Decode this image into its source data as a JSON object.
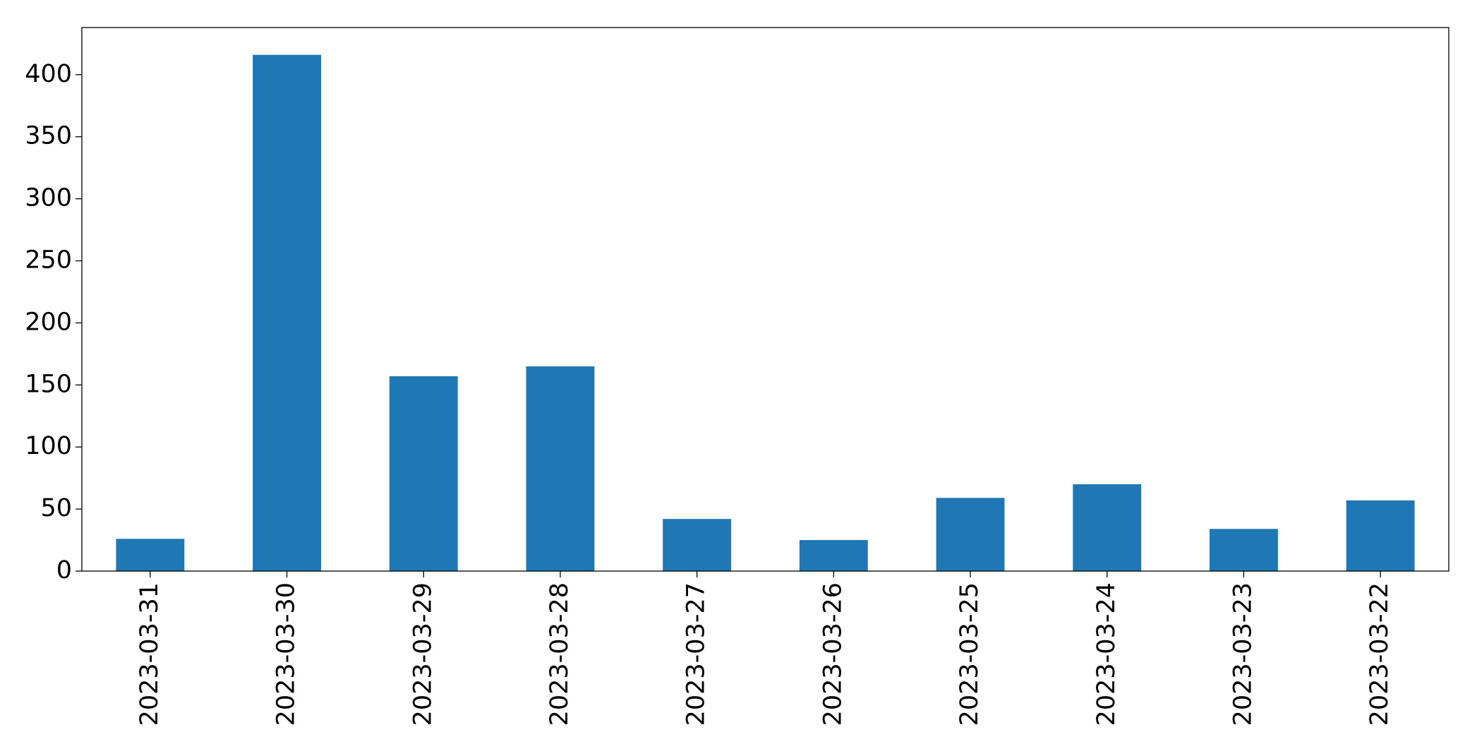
{
  "chart_data": {
    "type": "bar",
    "categories": [
      "2023-03-31",
      "2023-03-30",
      "2023-03-29",
      "2023-03-28",
      "2023-03-27",
      "2023-03-26",
      "2023-03-25",
      "2023-03-24",
      "2023-03-23",
      "2023-03-22"
    ],
    "values": [
      26,
      416,
      157,
      165,
      42,
      25,
      59,
      70,
      34,
      57
    ],
    "color": "#1f77b4",
    "ylim": [
      0,
      438
    ],
    "yticks": [
      0,
      50,
      100,
      150,
      200,
      250,
      300,
      350,
      400
    ],
    "grid": false
  }
}
